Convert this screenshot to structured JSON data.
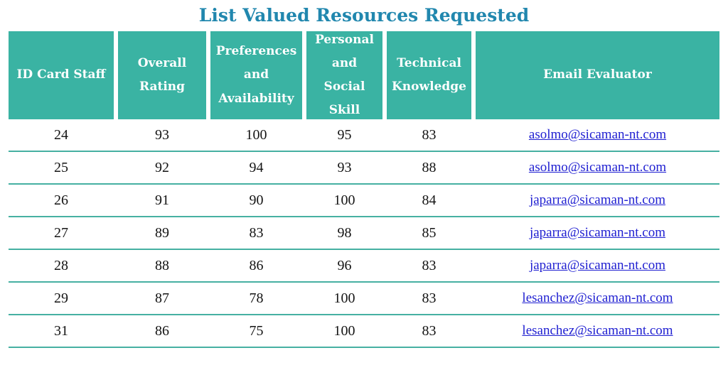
{
  "title": "List Valued Resources Requested",
  "table": {
    "columns": [
      {
        "label": "ID Card Staff"
      },
      {
        "label": "Overall Rating"
      },
      {
        "label": "Preferences and Availability"
      },
      {
        "label": "Personal and Social Skill"
      },
      {
        "label": "Technical Knowledge"
      },
      {
        "label": "Email Evaluator"
      }
    ],
    "rows": [
      {
        "id": "24",
        "overall": "93",
        "pref": "100",
        "social": "95",
        "tech": "83",
        "email": "asolmo@sicaman-nt.com"
      },
      {
        "id": "25",
        "overall": "92",
        "pref": "94",
        "social": "93",
        "tech": "88",
        "email": "asolmo@sicaman-nt.com"
      },
      {
        "id": "26",
        "overall": "91",
        "pref": "90",
        "social": "100",
        "tech": "84",
        "email": "japarra@sicaman-nt.com"
      },
      {
        "id": "27",
        "overall": "89",
        "pref": "83",
        "social": "98",
        "tech": "85",
        "email": "japarra@sicaman-nt.com"
      },
      {
        "id": "28",
        "overall": "88",
        "pref": "86",
        "social": "96",
        "tech": "83",
        "email": "japarra@sicaman-nt.com"
      },
      {
        "id": "29",
        "overall": "87",
        "pref": "78",
        "social": "100",
        "tech": "83",
        "email": "lesanchez@sicaman-nt.com"
      },
      {
        "id": "31",
        "overall": "86",
        "pref": "75",
        "social": "100",
        "tech": "83",
        "email": "lesanchez@sicaman-nt.com"
      }
    ]
  },
  "colors": {
    "header_bg": "#3ab3a3",
    "title": "#2187ae",
    "link": "#1f1fd1",
    "row_line": "#46b0a2"
  }
}
